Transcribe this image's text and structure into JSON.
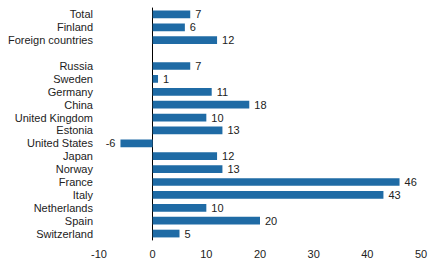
{
  "chart_data": {
    "type": "bar",
    "orientation": "horizontal",
    "categories": [
      "Total",
      "Finland",
      "Foreign countries",
      null,
      "Russia",
      "Sweden",
      "Germany",
      "China",
      "United Kingdom",
      "Estonia",
      "United States",
      "Japan",
      "Norway",
      "France",
      "Italy",
      "Netherlands",
      "Spain",
      "Switzerland"
    ],
    "values": [
      7,
      6,
      12,
      null,
      7,
      1,
      11,
      18,
      10,
      13,
      -6,
      12,
      13,
      46,
      43,
      10,
      20,
      5
    ],
    "color": "#1f6ba5",
    "xlim": [
      -10,
      50
    ],
    "xticks": [
      -10,
      0,
      10,
      20,
      30,
      40,
      50
    ],
    "grid": false,
    "data_labels": true
  }
}
